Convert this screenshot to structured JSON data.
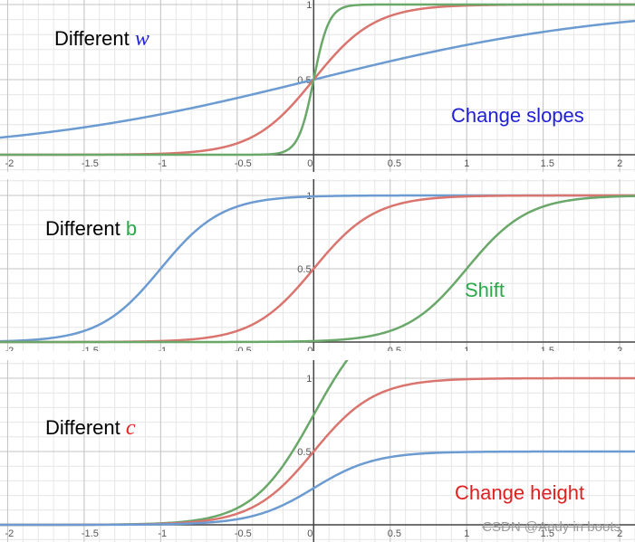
{
  "chart_data": [
    {
      "type": "line",
      "title_prefix": "Different",
      "title_var": "w",
      "title_var_color": "#1f1fd6",
      "title_var_italic": true,
      "annotation": "Change slopes",
      "annotation_color": "#1f1fd6",
      "xlim": [
        -2.05,
        2.1
      ],
      "ylim": [
        -0.08,
        1.02
      ],
      "x_ticks": [
        -2,
        -1.5,
        -1,
        -0.5,
        0,
        0.5,
        1,
        1.5,
        2
      ],
      "x_tick_labels": [
        "-2",
        "-1.5",
        "-1",
        "-0.5",
        "0",
        "0.5",
        "1",
        "1.5",
        "2"
      ],
      "y_tick_labels": [
        {
          "y": 0.5,
          "label": "0.5"
        },
        {
          "y": 1,
          "label": "1"
        }
      ],
      "grid": true,
      "series": [
        {
          "color": "#6c9bd2",
          "w": 1,
          "b": 0,
          "c": 1
        },
        {
          "color": "#d9756e",
          "w": 5,
          "b": 0,
          "c": 1
        },
        {
          "color": "#6aa86a",
          "w": 20,
          "b": 0,
          "c": 1
        }
      ]
    },
    {
      "type": "line",
      "title_prefix": "Different",
      "title_var": "b",
      "title_var_color": "#2aa84a",
      "title_var_italic": false,
      "annotation": "Shift",
      "annotation_color": "#2aa84a",
      "xlim": [
        -2.05,
        2.1
      ],
      "ylim": [
        -0.08,
        1.02
      ],
      "x_ticks": [
        -2,
        -1.5,
        -1,
        -0.5,
        0,
        0.5,
        1,
        1.5,
        2
      ],
      "x_tick_labels": [
        "-2",
        "-1.5",
        "-1",
        "-0.5",
        "0",
        "0.5",
        "1",
        "1.5",
        "2"
      ],
      "y_tick_labels": [
        {
          "y": 0.5,
          "label": "0.5"
        },
        {
          "y": 1,
          "label": "1"
        }
      ],
      "grid": true,
      "series": [
        {
          "color": "#6c9bd2",
          "w": 5,
          "b": 5,
          "c": 1
        },
        {
          "color": "#d9756e",
          "w": 5,
          "b": 0,
          "c": 1
        },
        {
          "color": "#6aa86a",
          "w": 5,
          "b": -5,
          "c": 1
        }
      ]
    },
    {
      "type": "line",
      "title_prefix": "Different",
      "title_var": "c",
      "title_var_color": "#e02020",
      "title_var_italic": true,
      "annotation": "Change height",
      "annotation_color": "#e02020",
      "xlim": [
        -2.05,
        2.1
      ],
      "ylim": [
        -0.08,
        1.02
      ],
      "x_ticks": [
        -2,
        -1.5,
        -1,
        -0.5,
        0,
        0.5,
        1,
        1.5,
        2
      ],
      "x_tick_labels": [
        "-2",
        "-1.5",
        "-1",
        "-0.5",
        "0",
        "0.5",
        "1",
        "1.5",
        "2"
      ],
      "y_tick_labels": [
        {
          "y": 0.5,
          "label": "0.5"
        },
        {
          "y": 1,
          "label": "1"
        }
      ],
      "grid": true,
      "series": [
        {
          "color": "#6aa86a",
          "w": 5,
          "b": 0,
          "c": 1.5
        },
        {
          "color": "#d9756e",
          "w": 5,
          "b": 0,
          "c": 1
        },
        {
          "color": "#6c9bd2",
          "w": 5,
          "b": 0,
          "c": 0.5
        }
      ]
    }
  ],
  "watermark": "CSDN @Andy in boots"
}
